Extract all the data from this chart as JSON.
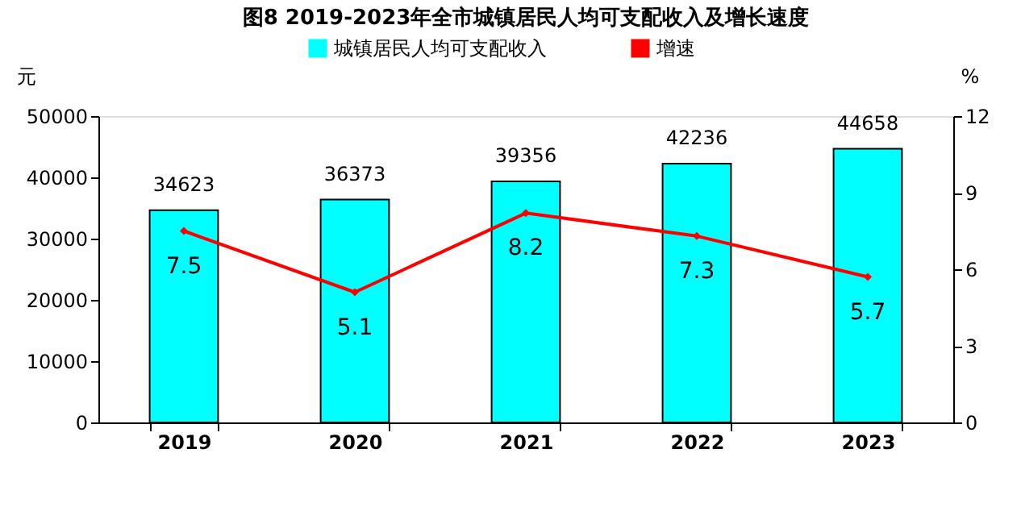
{
  "chart_data": {
    "type": "bar",
    "title": "图8  2019-2023年全市城镇居民人均可支配收入及增长速度",
    "categories": [
      "2019",
      "2020",
      "2021",
      "2022",
      "2023"
    ],
    "series": [
      {
        "name": "城镇居民人均可支配收入",
        "color": "#00ffff",
        "values": [
          34623,
          36373,
          39356,
          42236,
          44658
        ]
      },
      {
        "name": "增速",
        "type": "line",
        "axis": "y2",
        "color": "#ff0000",
        "marker": "diamond",
        "values": [
          7.5,
          5.1,
          8.2,
          7.3,
          5.7
        ]
      }
    ],
    "ylabel": "元",
    "y2label": "%",
    "ylim": [
      0,
      50000
    ],
    "yticks": [
      0,
      10000,
      20000,
      30000,
      40000,
      50000
    ],
    "y2lim": [
      0,
      12
    ],
    "y2ticks": [
      0,
      3,
      6,
      9,
      12
    ],
    "data_labels": true,
    "legend": "top",
    "grid": false
  }
}
